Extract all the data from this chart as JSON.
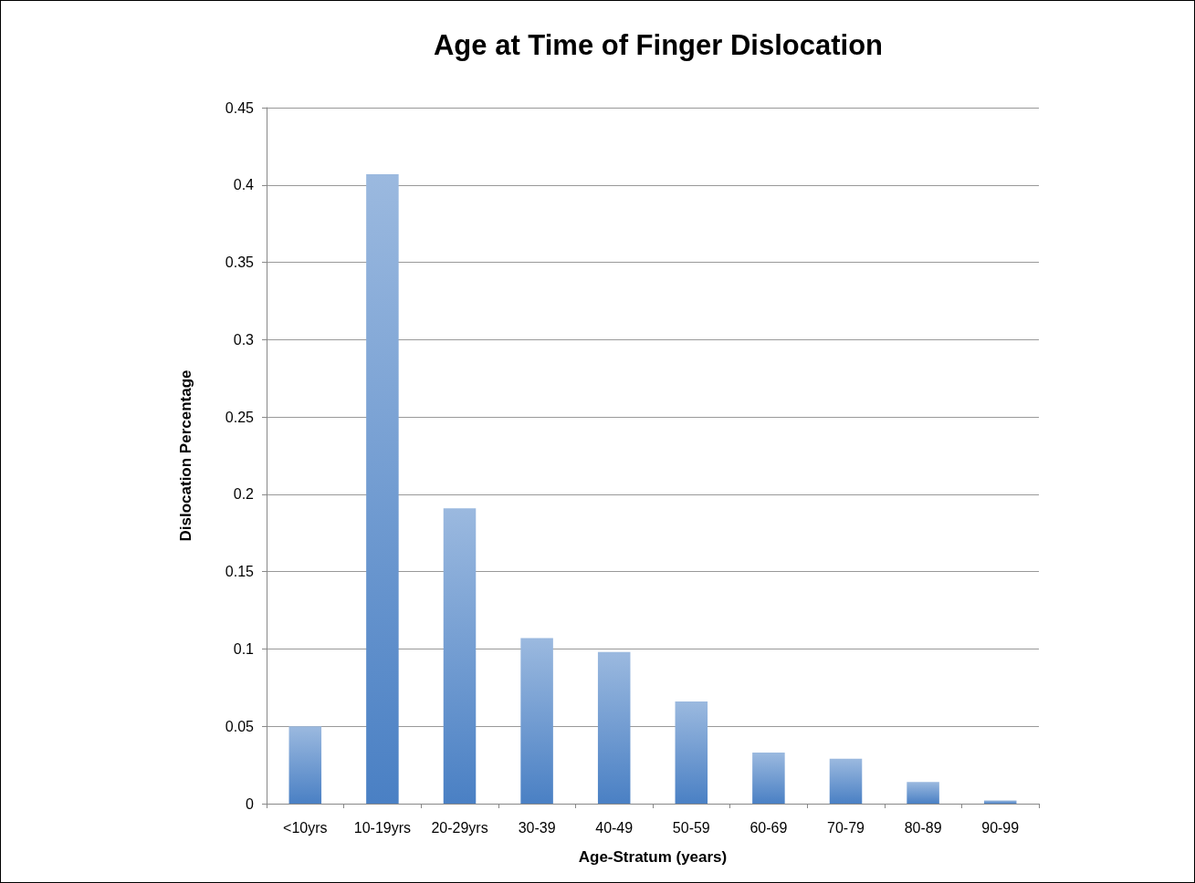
{
  "chart_data": {
    "type": "bar",
    "title": "Age at Time of Finger Dislocation",
    "xlabel": "Age-Stratum (years)",
    "ylabel": "Dislocation Percentage",
    "categories": [
      "<10yrs",
      "10-19yrs",
      "20-29yrs",
      "30-39",
      "40-49",
      "50-59",
      "60-69",
      "70-79",
      "80-89",
      "90-99"
    ],
    "values": [
      0.05,
      0.407,
      0.191,
      0.107,
      0.098,
      0.066,
      0.033,
      0.029,
      0.014,
      0.002
    ],
    "color": "#4a80c4",
    "ylim": [
      0,
      0.45
    ],
    "yticks": [
      0,
      0.05,
      0.1,
      0.15,
      0.2,
      0.25,
      0.3,
      0.35,
      0.4,
      0.45
    ],
    "grid": "y"
  }
}
